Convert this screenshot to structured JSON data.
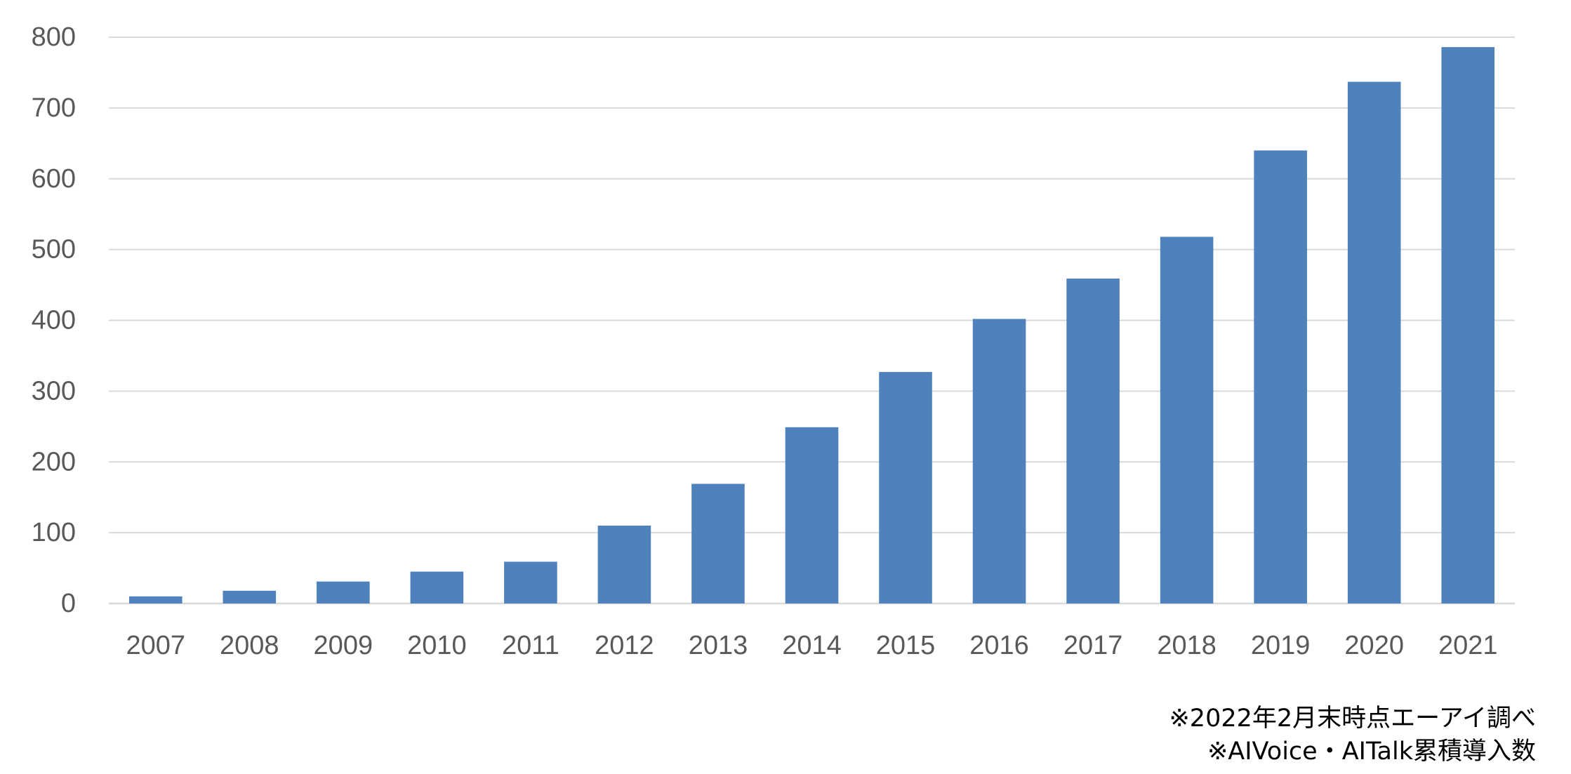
{
  "chart_data": {
    "type": "bar",
    "categories": [
      "2007",
      "2008",
      "2009",
      "2010",
      "2011",
      "2012",
      "2013",
      "2014",
      "2015",
      "2016",
      "2017",
      "2018",
      "2019",
      "2020",
      "2021"
    ],
    "values": [
      10,
      18,
      31,
      45,
      59,
      110,
      169,
      249,
      327,
      402,
      459,
      518,
      640,
      737,
      786
    ],
    "ylim": [
      0,
      800
    ],
    "yticks": [
      0,
      100,
      200,
      300,
      400,
      500,
      600,
      700,
      800
    ],
    "grid": true,
    "bar_color": "#4F81BD",
    "grid_color": "#D9D9D9",
    "text_color": "#595959",
    "annotations": [
      "※2022年2月末時点エーアイ調べ",
      "※AIVoice・AITalk累積導入数"
    ]
  }
}
